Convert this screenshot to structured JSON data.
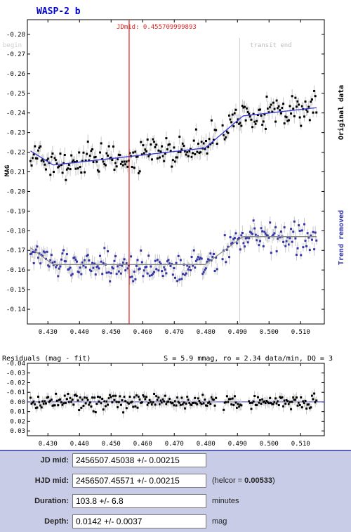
{
  "chart_data": [
    {
      "type": "scatter",
      "title": "WASP-2 b",
      "ylabel": "MAG",
      "x_ticks": [
        "0.430",
        "0.440",
        "0.450",
        "0.460",
        "0.470",
        "0.480",
        "0.490",
        "0.500",
        "0.510"
      ],
      "y_ticks": [
        "-0.28",
        "-0.27",
        "-0.26",
        "-0.25",
        "-0.24",
        "-0.23",
        "-0.22",
        "-0.21",
        "-0.20",
        "-0.19",
        "-0.18",
        "-0.17",
        "-0.16",
        "-0.15",
        "-0.14"
      ],
      "xlim": [
        0.4235,
        0.5175
      ],
      "ylim": [
        -0.2875,
        -0.1325
      ],
      "y_inverted": true,
      "jdmid_label": "JDmid: 0.455709999893",
      "jdmid": 0.45571,
      "transit_begin_label": "begin",
      "transit_end_label": "transit end",
      "transit_begin": 0.4245,
      "transit_end": 0.4907,
      "series": [
        {
          "name": "Original data",
          "color": "#000000",
          "fit_color": "#3333dd",
          "offset_mag": -0.23,
          "x_start": 0.4245,
          "x_end": 0.515,
          "count": 260
        },
        {
          "name": "Trend removed",
          "color": "#3333aa",
          "fit_color": "#888888",
          "offset_mag": -0.17,
          "x_start": 0.4245,
          "x_end": 0.515,
          "count": 260
        }
      ],
      "fit": {
        "depth_mag": 0.0142,
        "mid": 0.45571,
        "duration_days": 0.0721,
        "trend_slope": -0.18
      }
    },
    {
      "type": "scatter",
      "title": "Residuals (mag - fit)",
      "stats": "S = 5.9 mmag, ro = 2.34 data/min, DQ = 3",
      "x_ticks": [
        "0.430",
        "0.440",
        "0.450",
        "0.460",
        "0.470",
        "0.480",
        "0.490",
        "0.500",
        "0.510"
      ],
      "y_ticks": [
        "-0.04",
        "-0.03",
        "-0.02",
        "-0.01",
        "0.00",
        "0.01",
        "0.02",
        "0.03"
      ],
      "xlim": [
        0.4235,
        0.5175
      ],
      "ylim": [
        -0.04,
        0.035
      ],
      "gaps": [
        [
          0.4835,
          0.4855
        ],
        [
          0.4915,
          0.4935
        ]
      ]
    }
  ],
  "form": {
    "jd_mid": {
      "label": "JD mid:",
      "value": "2456507.45038 +/- 0.00215"
    },
    "hjd_mid": {
      "label": "HJD mid:",
      "value": "2456507.45571 +/- 0.00215",
      "note_prefix": "(helcor = ",
      "note_value": "0.00533",
      "note_suffix": ")"
    },
    "duration": {
      "label": "Duration:",
      "value": "103.8 +/- 6.8",
      "unit": "minutes"
    },
    "depth": {
      "label": "Depth:",
      "value": "0.0142 +/- 0.0037",
      "unit": "mag"
    }
  },
  "colors": {
    "jdmid_line": "#dd2222",
    "transit_line": "#cccccc",
    "fit_blue": "#3333dd",
    "panel_bg": "#c8cce6"
  }
}
